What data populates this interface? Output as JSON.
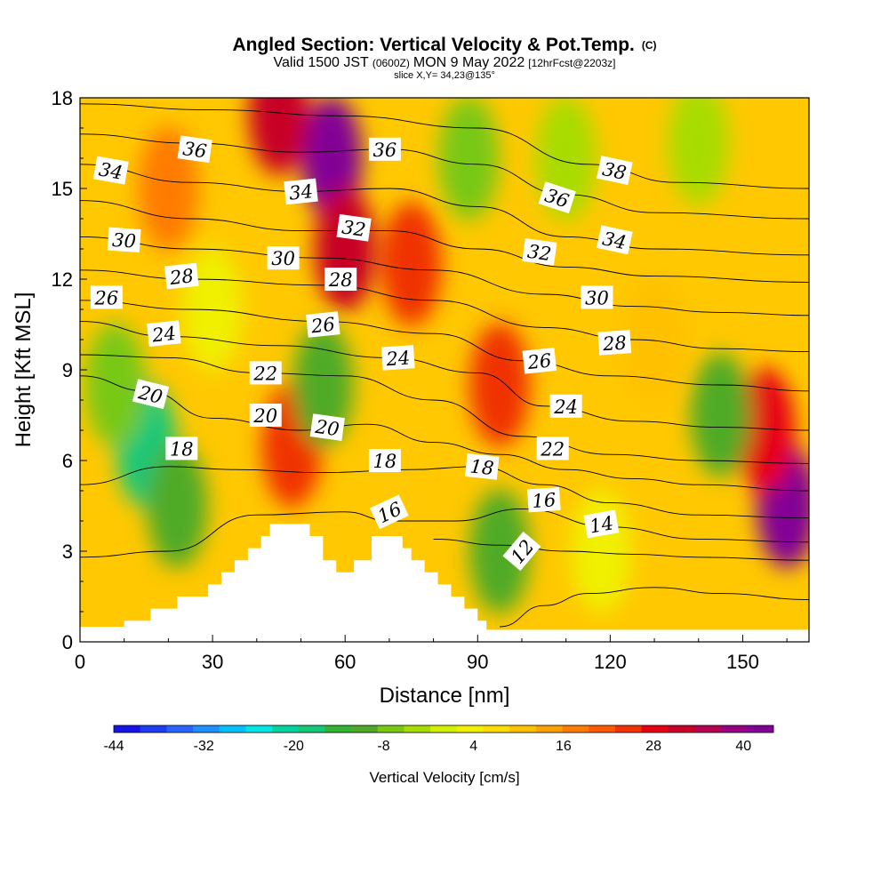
{
  "chart_data": {
    "type": "heatmap",
    "title": "Angled Section: Vertical Velocity & Pot.Temp.",
    "title_mark": "(C)",
    "subtitle_a": "Valid 1500 JST",
    "subtitle_b": "(0600Z)",
    "subtitle_c": "MON 9 May 2022",
    "subtitle_d": "[12hrFcst@2203z]",
    "subtitle2": "slice X,Y= 34,23@135°",
    "xlabel": "Distance [nm]",
    "ylabel": "Height [Kft MSL]",
    "xlim": [
      0,
      165
    ],
    "ylim": [
      0,
      18
    ],
    "xticks": [
      0,
      30,
      60,
      90,
      120,
      150
    ],
    "yticks": [
      0,
      3,
      6,
      9,
      12,
      15,
      18
    ],
    "colorbar": {
      "label": "Vertical Velocity [cm/s]",
      "range": [
        -44,
        44
      ],
      "tick_values": [
        -44,
        -32,
        -20,
        -8,
        4,
        16,
        28,
        40
      ],
      "colors": [
        "#1414e6",
        "#1e3cf0",
        "#2864ff",
        "#1e90ff",
        "#00c0ff",
        "#00e6e6",
        "#00d2a0",
        "#14c878",
        "#32b432",
        "#50aa28",
        "#78c814",
        "#a8dc00",
        "#d2f000",
        "#f0f000",
        "#ffdc00",
        "#ffc000",
        "#ffa000",
        "#ff7c00",
        "#ff5a00",
        "#f03200",
        "#e60014",
        "#c80028",
        "#b40050",
        "#960082",
        "#820096"
      ]
    },
    "velocity_cells": [
      {
        "x": 15,
        "y": 6.5,
        "v": -16
      },
      {
        "x": 22,
        "y": 4.5,
        "v": -12
      },
      {
        "x": 8,
        "y": 8.5,
        "v": -8
      },
      {
        "x": 57,
        "y": 16,
        "v": 44
      },
      {
        "x": 60,
        "y": 13,
        "v": 30
      },
      {
        "x": 45,
        "y": 17.5,
        "v": 30
      },
      {
        "x": 48,
        "y": 6.5,
        "v": 26
      },
      {
        "x": 75,
        "y": 12.5,
        "v": 24
      },
      {
        "x": 95,
        "y": 8.5,
        "v": 26
      },
      {
        "x": 160,
        "y": 4.5,
        "v": 42
      },
      {
        "x": 155,
        "y": 7,
        "v": 28
      },
      {
        "x": 145,
        "y": 7.5,
        "v": -12
      },
      {
        "x": 95,
        "y": 3,
        "v": -12
      },
      {
        "x": 55,
        "y": 8.5,
        "v": -12
      },
      {
        "x": 20,
        "y": 15,
        "v": 16
      },
      {
        "x": 88,
        "y": 16,
        "v": -6
      },
      {
        "x": 110,
        "y": 16,
        "v": -2
      },
      {
        "x": 140,
        "y": 16.5,
        "v": -4
      },
      {
        "x": 130,
        "y": 10,
        "v": 10
      },
      {
        "x": 30,
        "y": 11,
        "v": 4
      },
      {
        "x": 118,
        "y": 3,
        "v": 2
      }
    ],
    "terrain": [
      [
        0,
        0.5
      ],
      [
        10,
        0.5
      ],
      [
        10,
        0.7
      ],
      [
        16,
        0.7
      ],
      [
        16,
        1.1
      ],
      [
        22,
        1.1
      ],
      [
        22,
        1.5
      ],
      [
        29,
        1.5
      ],
      [
        29,
        1.9
      ],
      [
        32,
        1.9
      ],
      [
        32,
        2.3
      ],
      [
        35,
        2.3
      ],
      [
        35,
        2.7
      ],
      [
        38,
        2.7
      ],
      [
        38,
        3.1
      ],
      [
        41,
        3.1
      ],
      [
        41,
        3.5
      ],
      [
        43,
        3.5
      ],
      [
        43,
        3.9
      ],
      [
        52,
        3.9
      ],
      [
        52,
        3.5
      ],
      [
        55,
        3.5
      ],
      [
        55,
        2.7
      ],
      [
        58,
        2.7
      ],
      [
        58,
        2.3
      ],
      [
        62,
        2.3
      ],
      [
        62,
        2.7
      ],
      [
        66,
        2.7
      ],
      [
        66,
        3.1
      ],
      [
        66,
        3.5
      ],
      [
        73,
        3.5
      ],
      [
        73,
        3.1
      ],
      [
        75,
        3.1
      ],
      [
        75,
        2.7
      ],
      [
        78,
        2.7
      ],
      [
        78,
        2.3
      ],
      [
        81,
        2.3
      ],
      [
        81,
        1.9
      ],
      [
        84,
        1.9
      ],
      [
        84,
        1.5
      ],
      [
        87,
        1.5
      ],
      [
        87,
        1.1
      ],
      [
        90,
        1.1
      ],
      [
        90,
        0.7
      ],
      [
        92,
        0.7
      ],
      [
        92,
        0.4
      ],
      [
        165,
        0.4
      ]
    ],
    "contours": [
      {
        "level": 12,
        "pts": [
          [
            95,
            0.5
          ],
          [
            105,
            1.2
          ],
          [
            115,
            1.6
          ],
          [
            130,
            1.8
          ],
          [
            145,
            1.6
          ],
          [
            165,
            1.4
          ]
        ]
      },
      {
        "level": 14,
        "pts": [
          [
            80,
            3.4
          ],
          [
            95,
            3.2
          ],
          [
            110,
            3.0
          ],
          [
            125,
            2.9
          ],
          [
            140,
            2.8
          ],
          [
            165,
            2.7
          ]
        ]
      },
      {
        "level": 16,
        "pts": [
          [
            0,
            2.8
          ],
          [
            20,
            3.0
          ],
          [
            40,
            4.2
          ],
          [
            60,
            4.3
          ],
          [
            70,
            4.0
          ],
          [
            85,
            4.0
          ],
          [
            100,
            4.4
          ],
          [
            120,
            3.8
          ],
          [
            140,
            3.4
          ],
          [
            165,
            3.3
          ]
        ]
      },
      {
        "level": 18,
        "pts": [
          [
            0,
            5.2
          ],
          [
            20,
            5.8
          ],
          [
            35,
            5.7
          ],
          [
            55,
            5.6
          ],
          [
            75,
            5.7
          ],
          [
            90,
            5.8
          ],
          [
            105,
            5.2
          ],
          [
            120,
            4.6
          ],
          [
            140,
            4.2
          ],
          [
            165,
            4.1
          ]
        ]
      },
      {
        "level": 20,
        "pts": [
          [
            0,
            8.8
          ],
          [
            15,
            8.3
          ],
          [
            30,
            7.4
          ],
          [
            50,
            7.0
          ],
          [
            65,
            7.2
          ],
          [
            80,
            6.6
          ],
          [
            95,
            6.2
          ],
          [
            110,
            5.7
          ],
          [
            125,
            5.4
          ],
          [
            140,
            5.2
          ],
          [
            165,
            5.0
          ]
        ]
      },
      {
        "level": 22,
        "pts": [
          [
            0,
            9.5
          ],
          [
            20,
            9.4
          ],
          [
            40,
            8.9
          ],
          [
            60,
            8.8
          ],
          [
            80,
            8.0
          ],
          [
            100,
            6.8
          ],
          [
            120,
            6.2
          ],
          [
            140,
            6.0
          ],
          [
            165,
            5.9
          ]
        ]
      },
      {
        "level": 24,
        "pts": [
          [
            0,
            10.6
          ],
          [
            20,
            10.1
          ],
          [
            45,
            9.8
          ],
          [
            70,
            9.4
          ],
          [
            90,
            8.9
          ],
          [
            105,
            7.8
          ],
          [
            125,
            7.3
          ],
          [
            145,
            7.1
          ],
          [
            165,
            7.0
          ]
        ]
      },
      {
        "level": 26,
        "pts": [
          [
            0,
            11.3
          ],
          [
            25,
            11.0
          ],
          [
            55,
            10.6
          ],
          [
            80,
            10.2
          ],
          [
            100,
            9.3
          ],
          [
            120,
            8.8
          ],
          [
            145,
            8.5
          ],
          [
            165,
            8.3
          ]
        ]
      },
      {
        "level": 28,
        "pts": [
          [
            0,
            12.3
          ],
          [
            25,
            12.0
          ],
          [
            55,
            11.8
          ],
          [
            80,
            11.3
          ],
          [
            105,
            10.4
          ],
          [
            125,
            10.0
          ],
          [
            145,
            9.7
          ],
          [
            165,
            9.6
          ]
        ]
      },
      {
        "level": 30,
        "pts": [
          [
            0,
            13.4
          ],
          [
            25,
            13.0
          ],
          [
            55,
            12.7
          ],
          [
            80,
            12.3
          ],
          [
            105,
            11.5
          ],
          [
            125,
            11.1
          ],
          [
            145,
            10.9
          ],
          [
            165,
            10.8
          ]
        ]
      },
      {
        "level": 32,
        "pts": [
          [
            0,
            14.6
          ],
          [
            25,
            14.0
          ],
          [
            50,
            13.6
          ],
          [
            70,
            13.6
          ],
          [
            90,
            13.0
          ],
          [
            110,
            12.4
          ],
          [
            130,
            12.1
          ],
          [
            165,
            11.9
          ]
        ]
      },
      {
        "level": 34,
        "pts": [
          [
            0,
            15.8
          ],
          [
            25,
            15.2
          ],
          [
            50,
            14.9
          ],
          [
            70,
            15.0
          ],
          [
            90,
            14.4
          ],
          [
            110,
            13.4
          ],
          [
            130,
            13.0
          ],
          [
            165,
            12.8
          ]
        ]
      },
      {
        "level": 36,
        "pts": [
          [
            0,
            16.8
          ],
          [
            25,
            16.5
          ],
          [
            50,
            16.2
          ],
          [
            70,
            16.3
          ],
          [
            90,
            15.8
          ],
          [
            110,
            14.8
          ],
          [
            130,
            14.2
          ],
          [
            165,
            14.0
          ]
        ]
      },
      {
        "level": 38,
        "pts": [
          [
            0,
            17.8
          ],
          [
            30,
            17.6
          ],
          [
            60,
            17.4
          ],
          [
            90,
            17.0
          ],
          [
            115,
            15.8
          ],
          [
            135,
            15.2
          ],
          [
            165,
            15.0
          ]
        ]
      }
    ],
    "contour_labels": [
      {
        "text": "36",
        "x": 26,
        "y": 16.3,
        "rot": 8
      },
      {
        "text": "34",
        "x": 7,
        "y": 15.6,
        "rot": 10
      },
      {
        "text": "34",
        "x": 50,
        "y": 14.9,
        "rot": -6
      },
      {
        "text": "36",
        "x": 69,
        "y": 16.3,
        "rot": 0
      },
      {
        "text": "32",
        "x": 62,
        "y": 13.7,
        "rot": 8
      },
      {
        "text": "30",
        "x": 10,
        "y": 13.3,
        "rot": 4
      },
      {
        "text": "30",
        "x": 46,
        "y": 12.7,
        "rot": 0
      },
      {
        "text": "28",
        "x": 23,
        "y": 12.1,
        "rot": -6
      },
      {
        "text": "28",
        "x": 59,
        "y": 12.0,
        "rot": 0
      },
      {
        "text": "26",
        "x": 6,
        "y": 11.4,
        "rot": 0
      },
      {
        "text": "26",
        "x": 55,
        "y": 10.5,
        "rot": -6
      },
      {
        "text": "24",
        "x": 19,
        "y": 10.2,
        "rot": -6
      },
      {
        "text": "24",
        "x": 72,
        "y": 9.4,
        "rot": -4
      },
      {
        "text": "22",
        "x": 42,
        "y": 8.9,
        "rot": 0
      },
      {
        "text": "20",
        "x": 16,
        "y": 8.2,
        "rot": 14
      },
      {
        "text": "20",
        "x": 42,
        "y": 7.5,
        "rot": 0
      },
      {
        "text": "20",
        "x": 56,
        "y": 7.1,
        "rot": 8
      },
      {
        "text": "18",
        "x": 23,
        "y": 6.4,
        "rot": 0
      },
      {
        "text": "18",
        "x": 69,
        "y": 6.0,
        "rot": 0
      },
      {
        "text": "18",
        "x": 91,
        "y": 5.8,
        "rot": 6
      },
      {
        "text": "16",
        "x": 70,
        "y": 4.3,
        "rot": -25
      },
      {
        "text": "16",
        "x": 105,
        "y": 4.7,
        "rot": -4
      },
      {
        "text": "14",
        "x": 118,
        "y": 3.9,
        "rot": -10
      },
      {
        "text": "12",
        "x": 100,
        "y": 3.0,
        "rot": -50
      },
      {
        "text": "38",
        "x": 121,
        "y": 15.6,
        "rot": 12
      },
      {
        "text": "36",
        "x": 108,
        "y": 14.7,
        "rot": 18
      },
      {
        "text": "34",
        "x": 121,
        "y": 13.3,
        "rot": 12
      },
      {
        "text": "32",
        "x": 104,
        "y": 12.9,
        "rot": 8
      },
      {
        "text": "30",
        "x": 117,
        "y": 11.4,
        "rot": 0
      },
      {
        "text": "28",
        "x": 121,
        "y": 9.9,
        "rot": -4
      },
      {
        "text": "26",
        "x": 104,
        "y": 9.3,
        "rot": -6
      },
      {
        "text": "24",
        "x": 110,
        "y": 7.8,
        "rot": 0
      },
      {
        "text": "22",
        "x": 107,
        "y": 6.4,
        "rot": 0
      }
    ]
  }
}
